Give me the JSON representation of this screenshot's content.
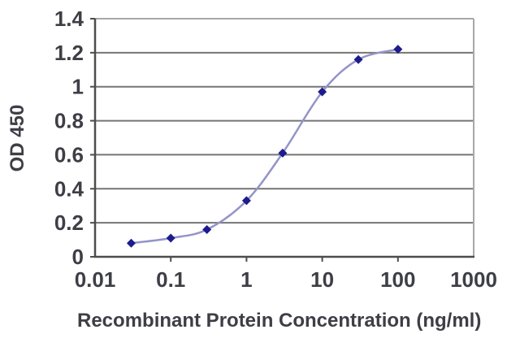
{
  "chart_data": {
    "type": "line",
    "x": [
      0.03,
      0.1,
      0.3,
      1,
      3,
      10,
      30,
      100
    ],
    "y": [
      0.08,
      0.11,
      0.16,
      0.33,
      0.61,
      0.97,
      1.16,
      1.22
    ],
    "title": "",
    "xlabel": "Recombinant Protein Concentration (ng/ml)",
    "ylabel": "OD 450",
    "x_scale": "log",
    "xlim": [
      0.01,
      1000
    ],
    "ylim": [
      0,
      1.4
    ],
    "x_tick_values": [
      0.01,
      0.1,
      1,
      10,
      100,
      1000
    ],
    "x_tick_labels": [
      "0.01",
      "0.1",
      "1",
      "10",
      "100",
      "1000"
    ],
    "y_tick_values": [
      0,
      0.2,
      0.4,
      0.6,
      0.8,
      1,
      1.2,
      1.4
    ],
    "y_tick_labels": [
      "0",
      "0.2",
      "0.4",
      "0.6",
      "0.8",
      "1",
      "1.2",
      "1.4"
    ],
    "grid": "horizontal",
    "legend": "none",
    "marker": "diamond",
    "smooth": true,
    "colors": {
      "line": "#9494c9",
      "marker": "#1c1c8e",
      "grid": "#757575",
      "axis": "#4d4d4d",
      "frame": "#a8a8a8",
      "text": "#3e3e46",
      "background": "#ffffff"
    }
  }
}
